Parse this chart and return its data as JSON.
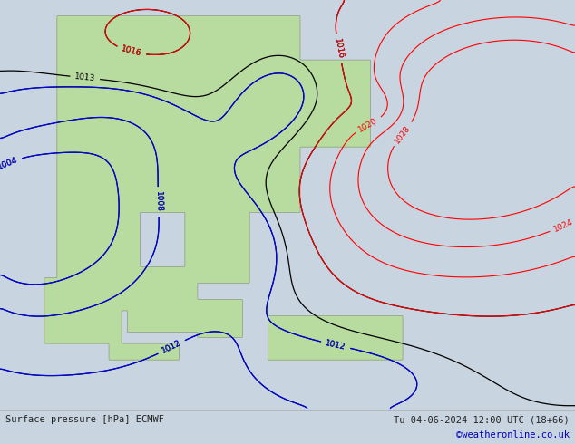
{
  "title_left": "Surface pressure [hPa] ECMWF",
  "title_right": "Tu 04-06-2024 12:00 UTC (18+66)",
  "credit": "©weatheronline.co.uk",
  "bg_color": "#c8d4e0",
  "land_color": "#b8dba0",
  "ocean_color": "#c8d4e0",
  "coast_color": "#888888",
  "footer_color": "#222222",
  "credit_color": "#0000bb",
  "lon_min": 88,
  "lon_max": 178,
  "lat_min": -18,
  "lat_max": 57,
  "black_levels": [
    1004,
    1008,
    1012,
    1013,
    1016
  ],
  "red_levels": [
    1016,
    1020,
    1024,
    1028
  ],
  "blue_levels": [
    1004,
    1008,
    1012
  ]
}
